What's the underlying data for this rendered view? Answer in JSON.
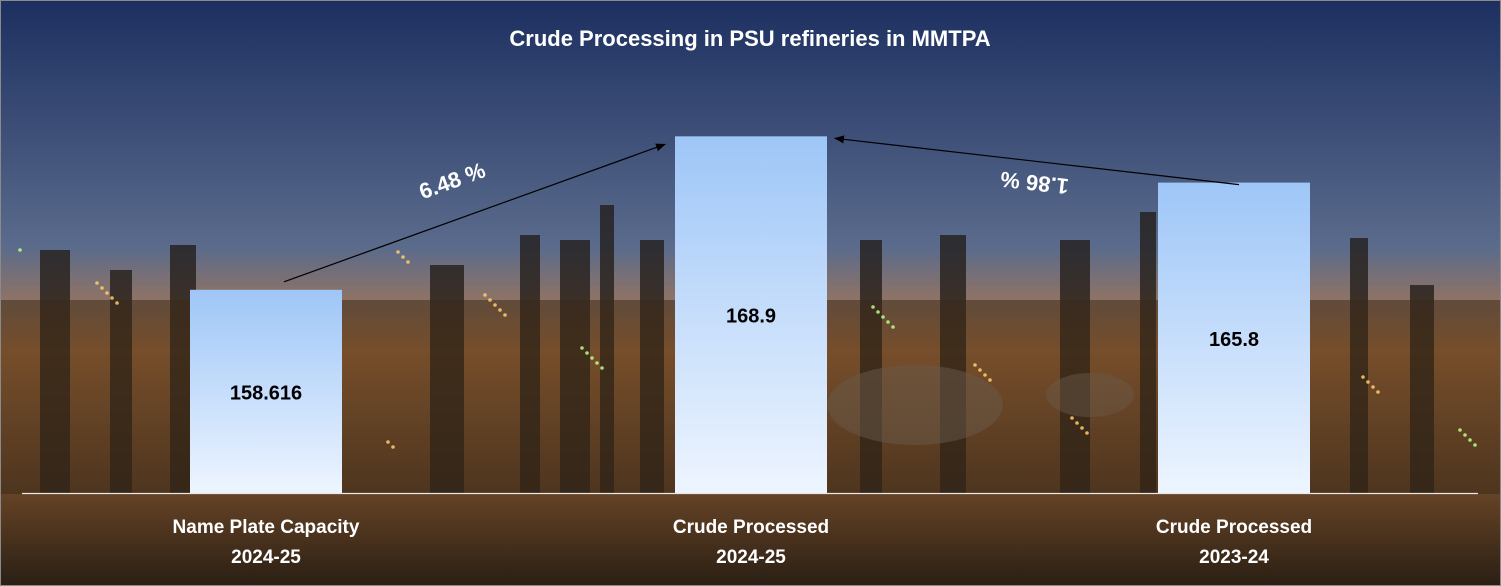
{
  "chart_data": {
    "type": "bar",
    "title": "Crude Processing in PSU refineries in MMTPA",
    "xlabel": "",
    "ylabel": "",
    "categories": [
      {
        "line1": "Name Plate Capacity",
        "line2": "2024-25"
      },
      {
        "line1": "Crude Processed",
        "line2": "2024-25"
      },
      {
        "line1": "Crude Processed",
        "line2": "2023-24"
      }
    ],
    "values": [
      158.616,
      168.9,
      165.8
    ],
    "value_labels": [
      "158.616",
      "168.9",
      "165.8"
    ],
    "ylim": [
      145,
      171
    ],
    "grid": false,
    "legend": "none",
    "annotations": [
      {
        "text": "6.48 %",
        "from": 0,
        "to": 1
      },
      {
        "text": "1.86 %",
        "from": 2,
        "to": 1
      }
    ],
    "colors": {
      "bar_top": "#9ec6f7",
      "bar_bottom": "#eef5ff",
      "text": "#ffffff",
      "value_text": "#000000",
      "sky_top": "#1c2f60",
      "sky_mid": "#5a6b8c",
      "horizon": "#c07a40",
      "ground": "#2a1f14"
    }
  }
}
